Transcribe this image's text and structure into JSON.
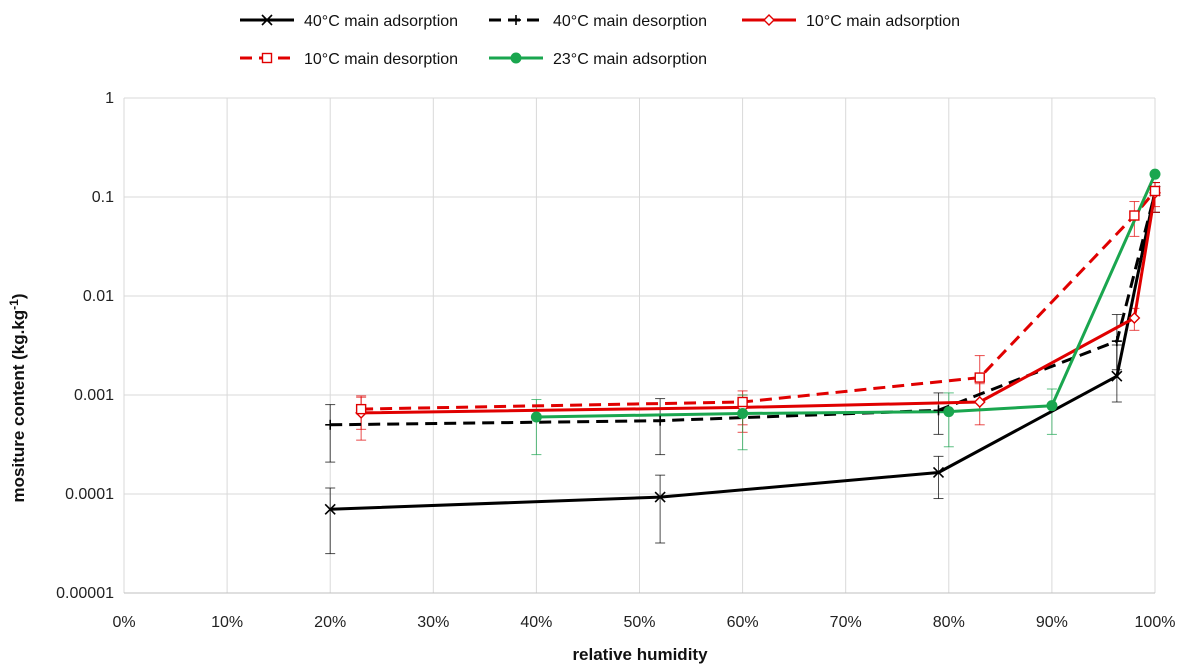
{
  "chart_data": {
    "type": "line",
    "title": "",
    "xlabel": "relative humidity",
    "ylabel": "mositure content (kg.kg",
    "ylabel_superscript": "-1",
    "ylabel_suffix": ")",
    "xlim": [
      0,
      1
    ],
    "ylim": [
      1e-05,
      1
    ],
    "y_scale": "log",
    "grid": true,
    "legend_position": "top",
    "x_tick_labels": [
      "0%",
      "10%",
      "20%",
      "30%",
      "40%",
      "50%",
      "60%",
      "70%",
      "80%",
      "90%",
      "100%"
    ],
    "y_tick_labels": [
      "0.00001",
      "0.0001",
      "0.001",
      "0.01",
      "0.1",
      "1"
    ],
    "series": [
      {
        "name": "40°C main adsorption",
        "color": "#000000",
        "dash": "solid",
        "marker": "x",
        "x": [
          0.2,
          0.52,
          0.79,
          0.963,
          1.0
        ],
        "y": [
          7e-05,
          9.3e-05,
          0.000165,
          0.00155,
          0.115
        ],
        "err_low": [
          2.5e-05,
          3.2e-05,
          9e-05,
          0.00085,
          0.07
        ],
        "err_high": [
          0.000115,
          0.000155,
          0.00024,
          0.0032,
          0.14
        ]
      },
      {
        "name": "40°C main desorption",
        "color": "#000000",
        "dash": "dashed",
        "marker": "plus",
        "x": [
          0.2,
          0.52,
          0.79,
          0.963,
          1.0
        ],
        "y": [
          0.0005,
          0.00055,
          0.0007,
          0.0035,
          0.11
        ],
        "err_low": [
          0.00021,
          0.00025,
          0.0004,
          0.0018,
          0.07
        ],
        "err_high": [
          0.0008,
          0.00092,
          0.00105,
          0.0065,
          0.14
        ]
      },
      {
        "name": "10°C main adsorption",
        "color": "#e00000",
        "dash": "solid",
        "marker": "diamond",
        "x": [
          0.23,
          0.6,
          0.83,
          0.98,
          1.0
        ],
        "y": [
          0.00066,
          0.00075,
          0.00085,
          0.006,
          0.11
        ],
        "err_low": [
          0.00035,
          0.00042,
          0.0005,
          0.0045,
          0.07
        ],
        "err_high": [
          0.00095,
          0.001,
          0.0013,
          0.0075,
          0.14
        ]
      },
      {
        "name": "10°C main desorption",
        "color": "#e00000",
        "dash": "dashed",
        "marker": "square",
        "x": [
          0.23,
          0.6,
          0.83,
          0.98,
          1.0
        ],
        "y": [
          0.00072,
          0.00085,
          0.0015,
          0.065,
          0.115
        ],
        "err_low": [
          0.00045,
          0.0005,
          0.0007,
          0.04,
          0.08
        ],
        "err_high": [
          0.00098,
          0.0011,
          0.0025,
          0.09,
          0.14
        ]
      },
      {
        "name": "23°C main adsorption",
        "color": "#1aa64f",
        "dash": "solid",
        "marker": "circle",
        "x": [
          0.4,
          0.6,
          0.8,
          0.9,
          1.0
        ],
        "y": [
          0.0006,
          0.00065,
          0.00068,
          0.00078,
          0.17
        ],
        "err_low": [
          0.00025,
          0.00028,
          0.0003,
          0.0004,
          0.17
        ],
        "err_high": [
          0.0009,
          0.001,
          0.00105,
          0.00115,
          0.17
        ]
      }
    ]
  }
}
